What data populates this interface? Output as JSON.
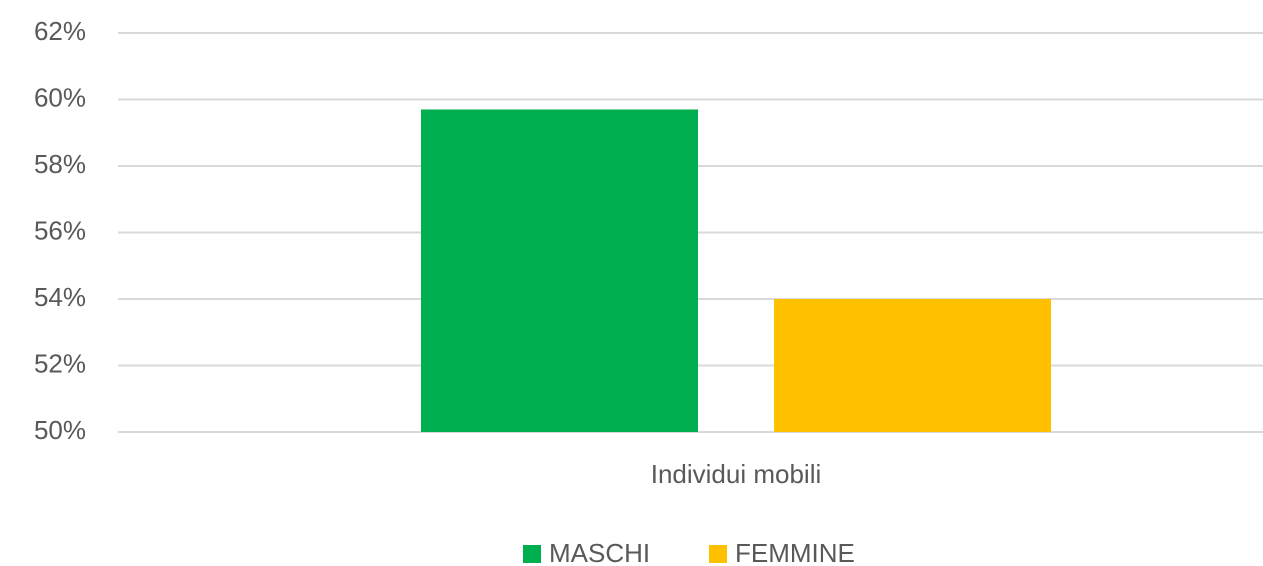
{
  "chart_data": {
    "type": "bar",
    "categories": [
      "Individui mobili"
    ],
    "series": [
      {
        "name": "MASCHI",
        "color": "#00b050",
        "values": [
          59.7
        ]
      },
      {
        "name": "FEMMINE",
        "color": "#ffc000",
        "values": [
          54.0
        ]
      }
    ],
    "ylim": [
      50,
      62
    ],
    "yticks": [
      {
        "value": 50,
        "label": "50%"
      },
      {
        "value": 52,
        "label": "52%"
      },
      {
        "value": 54,
        "label": "54%"
      },
      {
        "value": 56,
        "label": "56%"
      },
      {
        "value": 58,
        "label": "58%"
      },
      {
        "value": 60,
        "label": "60%"
      },
      {
        "value": 62,
        "label": "62%"
      }
    ],
    "grid": true,
    "legend": "bottom"
  }
}
